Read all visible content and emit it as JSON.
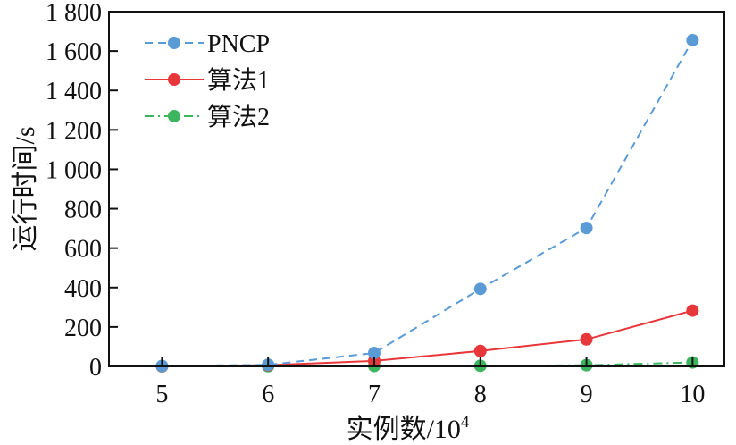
{
  "chart_data": {
    "type": "line",
    "title": "",
    "xlabel": "实例数/10",
    "xlabel_superscript": "4",
    "ylabel": "运行时间/s",
    "x": [
      5,
      6,
      7,
      8,
      9,
      10
    ],
    "xlim": [
      4.5,
      10.3
    ],
    "ylim": [
      0,
      1800
    ],
    "x_ticks": [
      5,
      6,
      7,
      8,
      9,
      10
    ],
    "x_tick_labels": [
      "5",
      "6",
      "7",
      "8",
      "9",
      "10"
    ],
    "y_ticks": [
      0,
      200,
      400,
      600,
      800,
      1000,
      1200,
      1400,
      1600,
      1800
    ],
    "y_tick_labels": [
      "0",
      "200",
      "400",
      "600",
      "800",
      "1 000",
      "1 200",
      "1 400",
      "1 600",
      "1 800"
    ],
    "grid": false,
    "legend_position": "top-left",
    "series": [
      {
        "name": "PNCP",
        "color": "#5b9bd5",
        "line_style": "dashed",
        "marker": "circle",
        "values": [
          2,
          8,
          68,
          393,
          702,
          1655
        ]
      },
      {
        "name": "算法1",
        "color": "#e8373a",
        "line_style": "solid",
        "marker": "circle",
        "values": [
          1,
          6,
          28,
          78,
          137,
          283
        ]
      },
      {
        "name": "算法2",
        "color": "#3cb55f",
        "line_style": "dashdot",
        "marker": "circle",
        "values": [
          0,
          1,
          2,
          3,
          6,
          20
        ]
      }
    ]
  }
}
